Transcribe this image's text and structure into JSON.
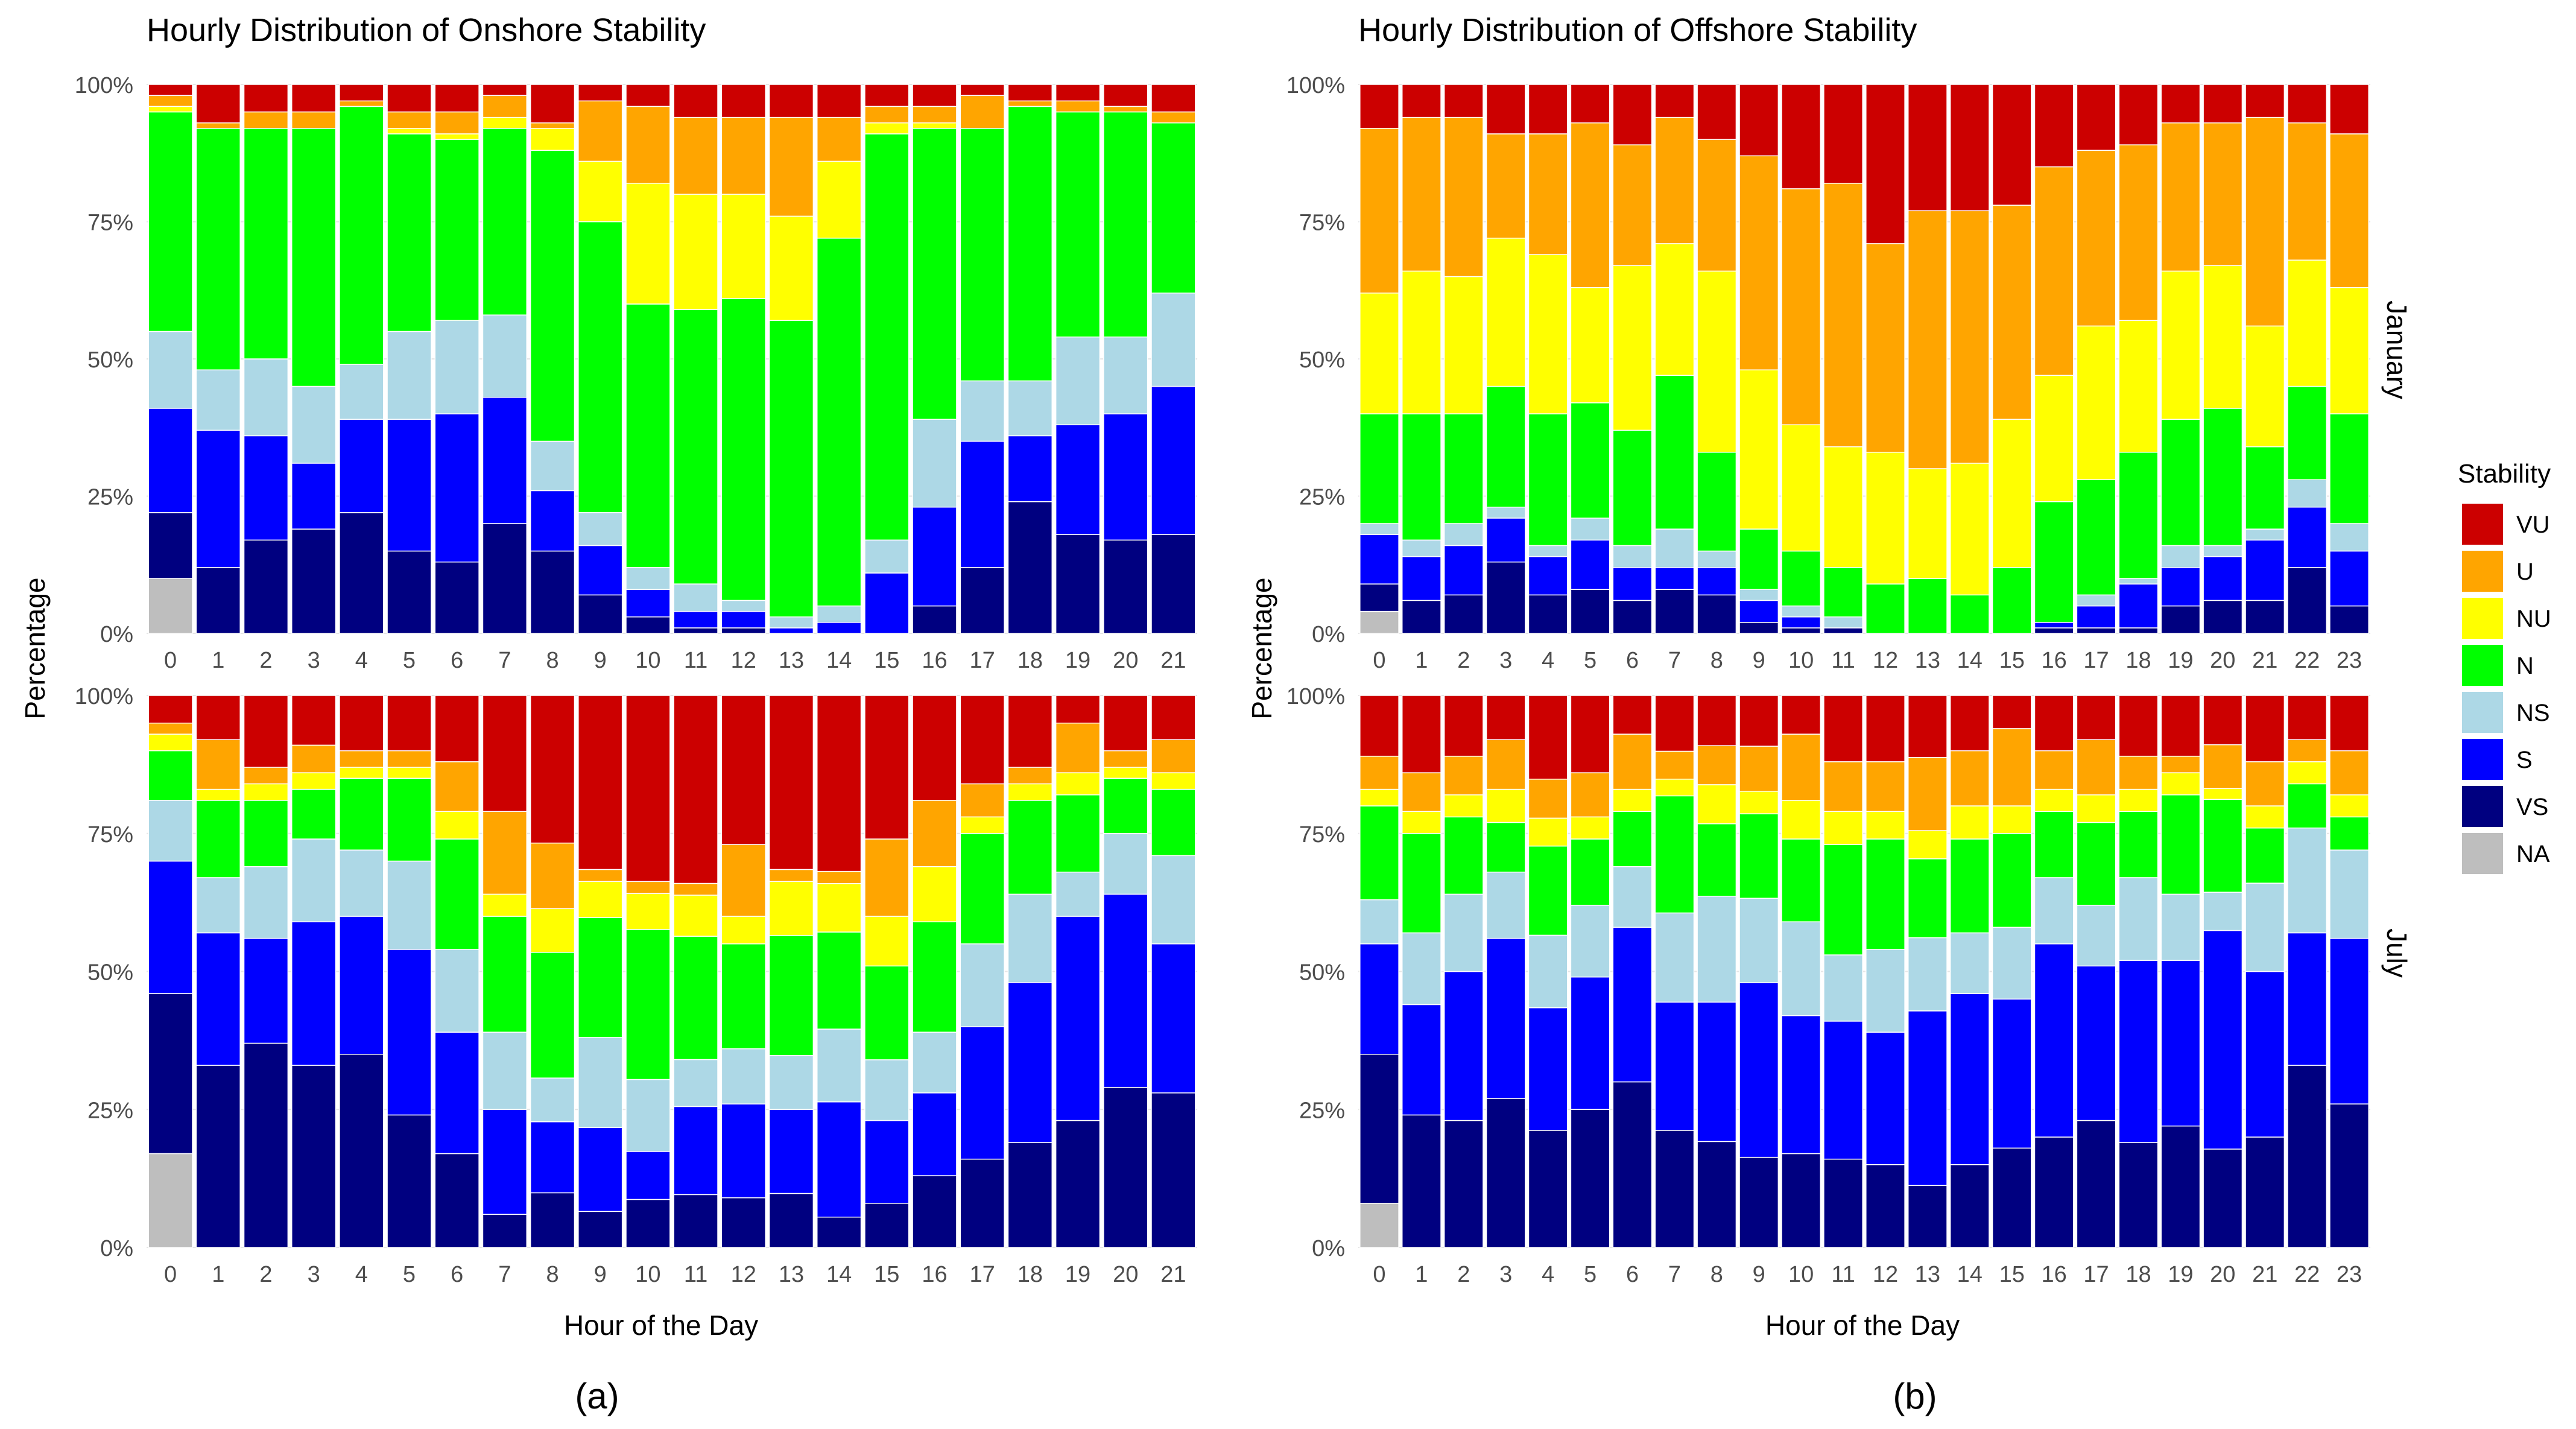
{
  "figure": {
    "panel_labels": [
      "(a)",
      "(b)"
    ],
    "legend": {
      "title": "Stability",
      "placement": "right",
      "items": [
        {
          "key": "VU",
          "color": "#CC0000"
        },
        {
          "key": "U",
          "color": "#FFA500"
        },
        {
          "key": "NU",
          "color": "#FFFF00"
        },
        {
          "key": "N",
          "color": "#00FF00"
        },
        {
          "key": "NS",
          "color": "#ADD8E6"
        },
        {
          "key": "S",
          "color": "#0000FF"
        },
        {
          "key": "VS",
          "color": "#000080"
        },
        {
          "key": "NA",
          "color": "#BEBEBE"
        }
      ]
    }
  },
  "chart_data": [
    {
      "type": "bar",
      "stacked": true,
      "title": "Hourly Distribution of Onshore Stability",
      "facet": "",
      "xlabel": "",
      "ylabel": "Percentage",
      "ylim": [
        0,
        100
      ],
      "yticks": [
        "0%",
        "25%",
        "50%",
        "75%",
        "100%"
      ],
      "categories": [
        "0",
        "1",
        "2",
        "3",
        "4",
        "5",
        "6",
        "7",
        "8",
        "9",
        "10",
        "11",
        "12",
        "13",
        "14",
        "15",
        "16",
        "17",
        "18",
        "19",
        "20",
        "21"
      ],
      "series": [
        {
          "name": "NA",
          "values": [
            10,
            0,
            0,
            0,
            0,
            0,
            0,
            0,
            0,
            0,
            0,
            0,
            0,
            0,
            0,
            0,
            0,
            0,
            0,
            0,
            0,
            0
          ]
        },
        {
          "name": "VS",
          "values": [
            12,
            12,
            17,
            19,
            22,
            15,
            13,
            20,
            15,
            7,
            3,
            1,
            1,
            0,
            0,
            0,
            5,
            12,
            24,
            18,
            17,
            18
          ]
        },
        {
          "name": "S",
          "values": [
            19,
            25,
            19,
            12,
            17,
            24,
            27,
            23,
            11,
            9,
            5,
            3,
            3,
            1,
            2,
            11,
            18,
            23,
            12,
            20,
            23,
            27
          ]
        },
        {
          "name": "NS",
          "values": [
            14,
            11,
            14,
            14,
            10,
            16,
            17,
            15,
            9,
            6,
            4,
            5,
            2,
            2,
            3,
            6,
            16,
            11,
            10,
            16,
            14,
            17
          ]
        },
        {
          "name": "N",
          "values": [
            40,
            44,
            42,
            47,
            47,
            36,
            33,
            34,
            53,
            53,
            48,
            50,
            55,
            54,
            67,
            74,
            53,
            46,
            50,
            41,
            41,
            31
          ]
        },
        {
          "name": "NU",
          "values": [
            1,
            0,
            0,
            0,
            0,
            1,
            1,
            2,
            4,
            11,
            22,
            21,
            19,
            19,
            14,
            2,
            1,
            0,
            0,
            0,
            0,
            0
          ]
        },
        {
          "name": "U",
          "values": [
            2,
            1,
            3,
            3,
            1,
            3,
            4,
            4,
            1,
            11,
            14,
            14,
            14,
            18,
            8,
            3,
            3,
            6,
            1,
            2,
            1,
            2
          ]
        },
        {
          "name": "VU",
          "values": [
            2,
            7,
            5,
            5,
            3,
            5,
            5,
            2,
            7,
            3,
            4,
            6,
            6,
            6,
            6,
            4,
            4,
            2,
            3,
            3,
            4,
            5
          ]
        }
      ]
    },
    {
      "type": "bar",
      "stacked": true,
      "title": "Hourly Distribution of Offshore Stability",
      "facet": "January",
      "xlabel": "",
      "ylabel": "Percentage",
      "ylim": [
        0,
        100
      ],
      "yticks": [
        "0%",
        "25%",
        "50%",
        "75%",
        "100%"
      ],
      "categories": [
        "0",
        "1",
        "2",
        "3",
        "4",
        "5",
        "6",
        "7",
        "8",
        "9",
        "10",
        "11",
        "12",
        "13",
        "14",
        "15",
        "16",
        "17",
        "18",
        "19",
        "20",
        "21",
        "22",
        "23"
      ],
      "series": [
        {
          "name": "NA",
          "values": [
            4,
            0,
            0,
            0,
            0,
            0,
            0,
            0,
            0,
            0,
            0,
            0,
            0,
            0,
            0,
            0,
            0,
            0,
            0,
            0,
            0,
            0,
            0,
            0
          ]
        },
        {
          "name": "VS",
          "values": [
            5,
            6,
            7,
            13,
            7,
            8,
            6,
            8,
            7,
            2,
            1,
            1,
            0,
            0,
            0,
            0,
            1,
            1,
            1,
            5,
            6,
            6,
            12,
            5
          ]
        },
        {
          "name": "S",
          "values": [
            9,
            8,
            9,
            8,
            7,
            9,
            6,
            4,
            5,
            4,
            2,
            0,
            0,
            0,
            0,
            0,
            1,
            4,
            8,
            7,
            8,
            11,
            11,
            10
          ]
        },
        {
          "name": "NS",
          "values": [
            2,
            3,
            4,
            2,
            2,
            4,
            4,
            7,
            3,
            2,
            2,
            2,
            0,
            0,
            0,
            0,
            0,
            2,
            1,
            4,
            2,
            2,
            5,
            5
          ]
        },
        {
          "name": "N",
          "values": [
            20,
            23,
            20,
            22,
            24,
            21,
            21,
            28,
            18,
            11,
            10,
            9,
            9,
            10,
            7,
            12,
            22,
            21,
            23,
            23,
            25,
            15,
            17,
            20
          ]
        },
        {
          "name": "NU",
          "values": [
            22,
            26,
            25,
            27,
            29,
            21,
            30,
            24,
            33,
            29,
            23,
            22,
            24,
            20,
            24,
            27,
            23,
            28,
            24,
            27,
            26,
            22,
            23,
            23
          ]
        },
        {
          "name": "U",
          "values": [
            30,
            28,
            29,
            19,
            22,
            30,
            22,
            23,
            24,
            39,
            43,
            48,
            38,
            47,
            46,
            39,
            38,
            32,
            32,
            27,
            26,
            38,
            25,
            28
          ]
        },
        {
          "name": "VU",
          "values": [
            8,
            6,
            6,
            9,
            9,
            7,
            11,
            6,
            10,
            13,
            19,
            18,
            29,
            23,
            23,
            22,
            15,
            12,
            11,
            7,
            7,
            6,
            7,
            9
          ]
        }
      ]
    },
    {
      "type": "bar",
      "stacked": true,
      "title": "",
      "facet": "",
      "xlabel": "Hour of the Day",
      "ylabel": "",
      "ylim": [
        0,
        100
      ],
      "yticks": [
        "0%",
        "25%",
        "50%",
        "75%",
        "100%"
      ],
      "categories": [
        "0",
        "1",
        "2",
        "3",
        "4",
        "5",
        "6",
        "7",
        "8",
        "9",
        "10",
        "11",
        "12",
        "13",
        "14",
        "15",
        "16",
        "17",
        "18",
        "19",
        "20",
        "21"
      ],
      "series": [
        {
          "name": "NA",
          "values": [
            17,
            0,
            0,
            0,
            0,
            0,
            0,
            0,
            0,
            0,
            0,
            0,
            0,
            0,
            0,
            0,
            0,
            0,
            0,
            0,
            0,
            0
          ]
        },
        {
          "name": "VS",
          "values": [
            29,
            33,
            37,
            33,
            35,
            24,
            17,
            6,
            10,
            6,
            8,
            9,
            9,
            9,
            5,
            8,
            13,
            16,
            19,
            23,
            29,
            28
          ]
        },
        {
          "name": "S",
          "values": [
            24,
            24,
            19,
            26,
            25,
            30,
            22,
            19,
            13,
            14,
            8,
            15,
            17,
            14,
            19,
            15,
            15,
            24,
            29,
            37,
            35,
            27
          ]
        },
        {
          "name": "NS",
          "values": [
            11,
            10,
            13,
            15,
            12,
            16,
            15,
            14,
            8,
            15,
            12,
            8,
            10,
            9,
            12,
            11,
            11,
            15,
            16,
            8,
            11,
            16
          ]
        },
        {
          "name": "N",
          "values": [
            9,
            14,
            12,
            9,
            13,
            15,
            20,
            21,
            23,
            20,
            25,
            21,
            19,
            20,
            16,
            17,
            20,
            20,
            17,
            14,
            10,
            12
          ]
        },
        {
          "name": "NU",
          "values": [
            3,
            2,
            3,
            3,
            2,
            2,
            5,
            4,
            8,
            6,
            6,
            7,
            5,
            9,
            8,
            9,
            10,
            3,
            3,
            4,
            2,
            3
          ]
        },
        {
          "name": "U",
          "values": [
            2,
            9,
            3,
            5,
            3,
            3,
            9,
            15,
            12,
            2,
            2,
            2,
            13,
            2,
            2,
            14,
            12,
            6,
            3,
            9,
            3,
            6
          ]
        },
        {
          "name": "VU",
          "values": [
            5,
            8,
            13,
            9,
            10,
            10,
            12,
            21,
            27,
            29,
            31,
            32,
            27,
            29,
            29,
            26,
            19,
            16,
            13,
            5,
            10,
            8
          ]
        }
      ]
    },
    {
      "type": "bar",
      "stacked": true,
      "title": "",
      "facet": "July",
      "xlabel": "Hour of the Day",
      "ylabel": "Percentage",
      "ylim": [
        0,
        100
      ],
      "yticks": [
        "0%",
        "25%",
        "50%",
        "75%",
        "100%"
      ],
      "categories": [
        "0",
        "1",
        "2",
        "3",
        "4",
        "5",
        "6",
        "7",
        "8",
        "9",
        "10",
        "11",
        "12",
        "13",
        "14",
        "15",
        "16",
        "17",
        "18",
        "19",
        "20",
        "21",
        "22",
        "23"
      ],
      "series": [
        {
          "name": "NA",
          "values": [
            8,
            0,
            0,
            0,
            0,
            0,
            0,
            0,
            0,
            0,
            0,
            0,
            0,
            0,
            0,
            0,
            0,
            0,
            0,
            0,
            0,
            0,
            0,
            0
          ]
        },
        {
          "name": "VS",
          "values": [
            27,
            24,
            23,
            27,
            21,
            25,
            30,
            21,
            19,
            16,
            17,
            16,
            15,
            11,
            15,
            18,
            20,
            23,
            19,
            22,
            18,
            20,
            33,
            26
          ]
        },
        {
          "name": "S",
          "values": [
            20,
            20,
            27,
            29,
            22,
            24,
            28,
            23,
            25,
            31,
            25,
            25,
            24,
            31,
            31,
            27,
            35,
            28,
            33,
            30,
            40,
            30,
            24,
            30
          ]
        },
        {
          "name": "NS",
          "values": [
            8,
            13,
            14,
            12,
            13,
            13,
            11,
            16,
            19,
            15,
            17,
            12,
            15,
            13,
            11,
            13,
            12,
            11,
            15,
            12,
            7,
            16,
            19,
            16
          ]
        },
        {
          "name": "N",
          "values": [
            17,
            18,
            14,
            9,
            16,
            12,
            10,
            21,
            13,
            15,
            15,
            20,
            20,
            14,
            17,
            17,
            12,
            15,
            12,
            18,
            17,
            10,
            8,
            6
          ]
        },
        {
          "name": "NU",
          "values": [
            3,
            4,
            4,
            6,
            5,
            4,
            4,
            3,
            7,
            4,
            7,
            6,
            5,
            5,
            6,
            5,
            4,
            5,
            4,
            4,
            2,
            4,
            4,
            4
          ]
        },
        {
          "name": "U",
          "values": [
            6,
            7,
            7,
            9,
            7,
            8,
            10,
            5,
            7,
            8,
            12,
            9,
            9,
            13,
            10,
            14,
            7,
            10,
            6,
            3,
            8,
            8,
            4,
            8
          ]
        },
        {
          "name": "VU",
          "values": [
            11,
            14,
            11,
            8,
            15,
            14,
            7,
            10,
            9,
            9,
            7,
            12,
            12,
            11,
            10,
            6,
            10,
            8,
            11,
            11,
            9,
            12,
            8,
            10
          ]
        }
      ]
    }
  ]
}
